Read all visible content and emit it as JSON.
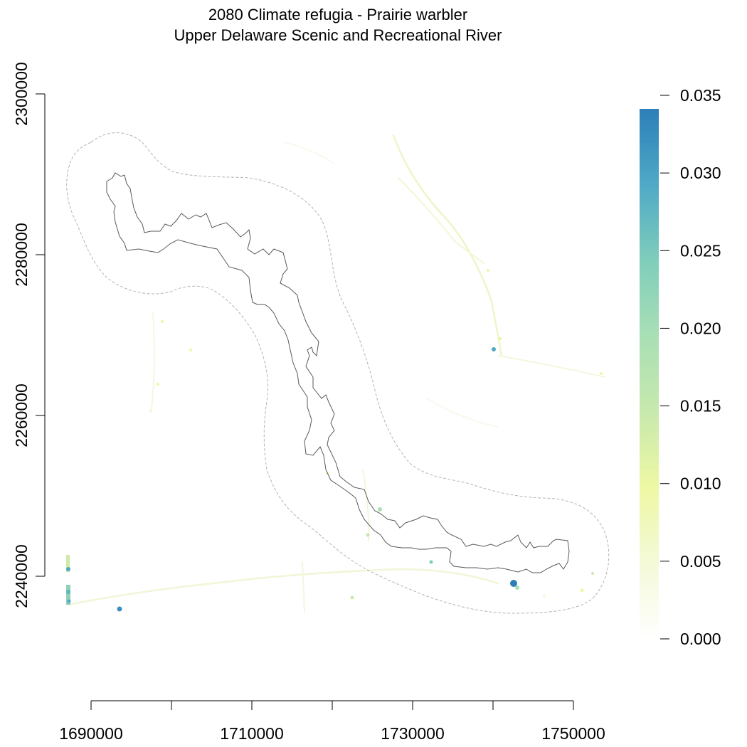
{
  "title": "2080 Climate refugia - Prairie warbler",
  "subtitle": "Upper Delaware Scenic and Recreational River",
  "x_ticks": [
    "1690000",
    "1710000",
    "1730000",
    "1750000"
  ],
  "y_ticks": [
    "2240000",
    "2260000",
    "2280000",
    "2300000"
  ],
  "legend": {
    "labels": [
      "0.000",
      "0.005",
      "0.010",
      "0.015",
      "0.020",
      "0.025",
      "0.030",
      "0.035"
    ],
    "colors": [
      "#ffffff",
      "#f4f9d8",
      "#eef8a4",
      "#c7e9ad",
      "#a9dfb5",
      "#7fcdbb",
      "#4fa9c6",
      "#2c7fb8"
    ]
  },
  "colors": {
    "park_boundary": "#595959",
    "buffer_boundary": "#b3b3b3",
    "background_habitat": "#f3f7e2"
  }
}
